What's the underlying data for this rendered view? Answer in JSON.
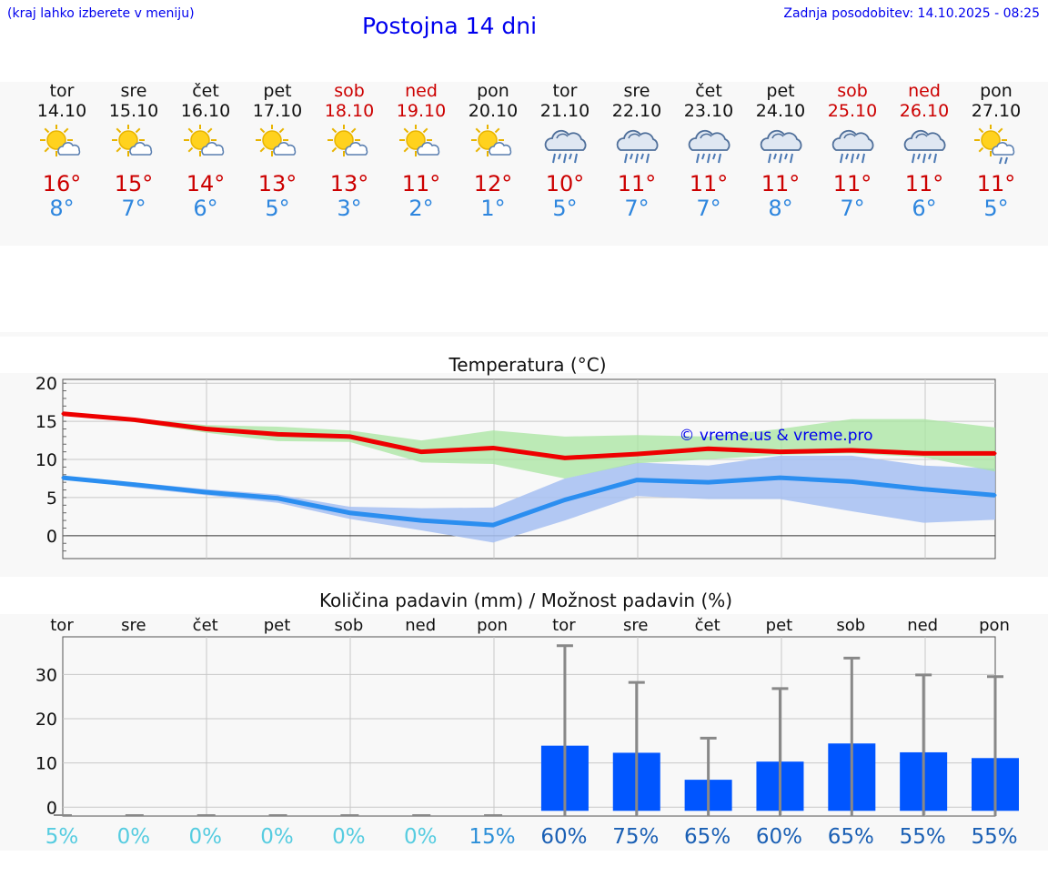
{
  "header": {
    "left_note": "(kraj lahko izberete v meniju)",
    "title": "Postojna 14 dni",
    "updated": "Zadnja posodobitev: 14.10.2025 - 08:25"
  },
  "days": [
    {
      "name": "tor",
      "date": "14.10",
      "icon": "sun-cloud-icon",
      "max": "16°",
      "min": "8°",
      "weekend": false
    },
    {
      "name": "sre",
      "date": "15.10",
      "icon": "sun-cloud-icon",
      "max": "15°",
      "min": "7°",
      "weekend": false
    },
    {
      "name": "čet",
      "date": "16.10",
      "icon": "sun-cloud-icon",
      "max": "14°",
      "min": "6°",
      "weekend": false
    },
    {
      "name": "pet",
      "date": "17.10",
      "icon": "sun-cloud-icon",
      "max": "13°",
      "min": "5°",
      "weekend": false
    },
    {
      "name": "sob",
      "date": "18.10",
      "icon": "sun-cloud-icon",
      "max": "13°",
      "min": "3°",
      "weekend": true
    },
    {
      "name": "ned",
      "date": "19.10",
      "icon": "sun-cloud-icon",
      "max": "11°",
      "min": "2°",
      "weekend": true
    },
    {
      "name": "pon",
      "date": "20.10",
      "icon": "sun-cloud-icon",
      "max": "12°",
      "min": "1°",
      "weekend": false
    },
    {
      "name": "tor",
      "date": "21.10",
      "icon": "rain-cloud-icon",
      "max": "10°",
      "min": "5°",
      "weekend": false
    },
    {
      "name": "sre",
      "date": "22.10",
      "icon": "rain-cloud-icon",
      "max": "11°",
      "min": "7°",
      "weekend": false
    },
    {
      "name": "čet",
      "date": "23.10",
      "icon": "rain-cloud-icon",
      "max": "11°",
      "min": "7°",
      "weekend": false
    },
    {
      "name": "pet",
      "date": "24.10",
      "icon": "rain-cloud-icon",
      "max": "11°",
      "min": "8°",
      "weekend": false
    },
    {
      "name": "sob",
      "date": "25.10",
      "icon": "rain-cloud-icon",
      "max": "11°",
      "min": "7°",
      "weekend": true
    },
    {
      "name": "ned",
      "date": "26.10",
      "icon": "rain-cloud-icon",
      "max": "11°",
      "min": "6°",
      "weekend": true
    },
    {
      "name": "pon",
      "date": "27.10",
      "icon": "sun-rain-icon",
      "max": "11°",
      "min": "5°",
      "weekend": false
    }
  ],
  "colors": {
    "max_line": "#ee0000",
    "min_line": "#2b8ef0",
    "max_band": "#a8e6a0",
    "min_band": "#a6c0f2",
    "bar": "#0055ff",
    "whisker": "#888888",
    "weekend_text": "#cc0000",
    "link": "#0000ee"
  },
  "chart_data": [
    {
      "type": "line",
      "title": "Temperatura (°C)",
      "watermark": "© vreme.us & vreme.pro",
      "x": [
        0,
        1,
        2,
        3,
        4,
        5,
        6,
        7,
        8,
        9,
        10,
        11,
        12,
        13
      ],
      "ylim": [
        -3,
        20.5
      ],
      "yticks": [
        "0",
        "5",
        "10",
        "15",
        "20"
      ],
      "series": [
        {
          "name": "max",
          "values": [
            16,
            15.2,
            14,
            13.3,
            13,
            11,
            11.5,
            10.2,
            10.7,
            11.4,
            11,
            11.2,
            10.8,
            10.8
          ]
        },
        {
          "name": "min",
          "values": [
            7.6,
            6.7,
            5.7,
            4.9,
            3,
            2,
            1.4,
            4.7,
            7.3,
            7,
            7.6,
            7.1,
            6.1,
            5.3
          ]
        }
      ],
      "bands": [
        {
          "name": "max-range",
          "upper": [
            16,
            15.4,
            14.5,
            14.3,
            13.8,
            12.5,
            13.8,
            13,
            13.2,
            13,
            14,
            15.3,
            15.3,
            14.2
          ],
          "lower": [
            16,
            14.9,
            13.5,
            12.4,
            12.3,
            9.6,
            9.4,
            7.5,
            9.5,
            10,
            10.6,
            10.8,
            10.3,
            8.4
          ]
        },
        {
          "name": "min-range",
          "upper": [
            7.6,
            7,
            6.1,
            5.4,
            3.8,
            3.6,
            3.7,
            7.5,
            9.6,
            9.2,
            10.5,
            10.5,
            9.2,
            8.8
          ],
          "lower": [
            7.6,
            6.3,
            5.3,
            4.3,
            2.2,
            0.7,
            -0.9,
            2,
            5.2,
            4.8,
            4.8,
            3.2,
            1.7,
            2.1
          ]
        }
      ]
    },
    {
      "type": "bar",
      "title": "Količina padavin (mm) / Možnost padavin (%)",
      "categories": [
        "tor",
        "sre",
        "čet",
        "pet",
        "sob",
        "ned",
        "pon",
        "tor",
        "sre",
        "čet",
        "pet",
        "sob",
        "ned",
        "pon"
      ],
      "ylim": [
        -2,
        38.5
      ],
      "yticks": [
        "0",
        "10",
        "20",
        "30"
      ],
      "values": [
        0,
        0,
        0,
        0,
        0,
        0,
        0,
        13.9,
        12.3,
        6.2,
        10.3,
        14.4,
        12.4,
        11.1
      ],
      "upper": [
        0,
        0,
        0,
        0,
        0,
        0,
        0,
        36.5,
        28.2,
        15.6,
        26.8,
        33.7,
        29.9,
        29.5
      ],
      "probability": [
        "5%",
        "0%",
        "0%",
        "0%",
        "0%",
        "0%",
        "15%",
        "60%",
        "75%",
        "65%",
        "60%",
        "65%",
        "55%",
        "55%"
      ],
      "probability_colors": [
        "#56cce0",
        "#56cce0",
        "#56cce0",
        "#56cce0",
        "#56cce0",
        "#56cce0",
        "#2c8fd8",
        "#1a5fb4",
        "#1a5fb4",
        "#1a5fb4",
        "#1a5fb4",
        "#1a5fb4",
        "#1a5fb4",
        "#1a5fb4"
      ]
    }
  ]
}
